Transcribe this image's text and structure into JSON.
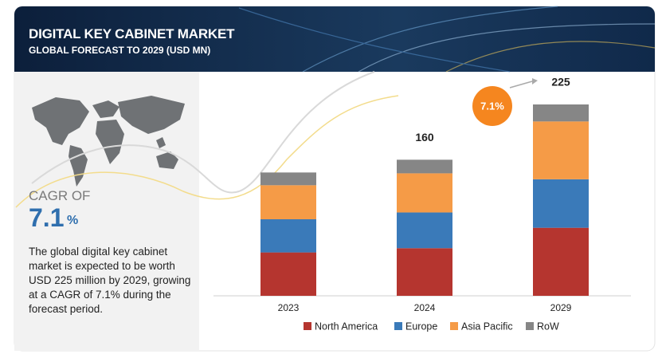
{
  "title": "DIGITAL KEY CABINET MARKET",
  "subtitle": "GLOBAL FORECAST TO 2029 (USD MN)",
  "cagr": {
    "label": "CAGR OF",
    "value": "7.1",
    "unit": "%"
  },
  "description": "The global digital key cabinet market is expected to be worth USD 225 million by 2029, growing at a CAGR of 7.1% during the forecast period.",
  "chart_data": {
    "type": "stacked_bar",
    "categories": [
      "2023",
      "2024",
      "2029"
    ],
    "series": [
      {
        "name": "North America",
        "color": "#b5352f",
        "values": [
          51,
          56,
          80
        ]
      },
      {
        "name": "Europe",
        "color": "#3a7ab9",
        "values": [
          39,
          42,
          57
        ]
      },
      {
        "name": "Asia Pacific",
        "color": "#f59b47",
        "values": [
          40,
          46,
          68
        ]
      },
      {
        "name": "RoW",
        "color": "#868686",
        "values": [
          15,
          16,
          20
        ]
      }
    ],
    "total_labels": [
      null,
      160,
      225
    ],
    "badge": "7.1%",
    "badge_color": "#f5861f"
  }
}
